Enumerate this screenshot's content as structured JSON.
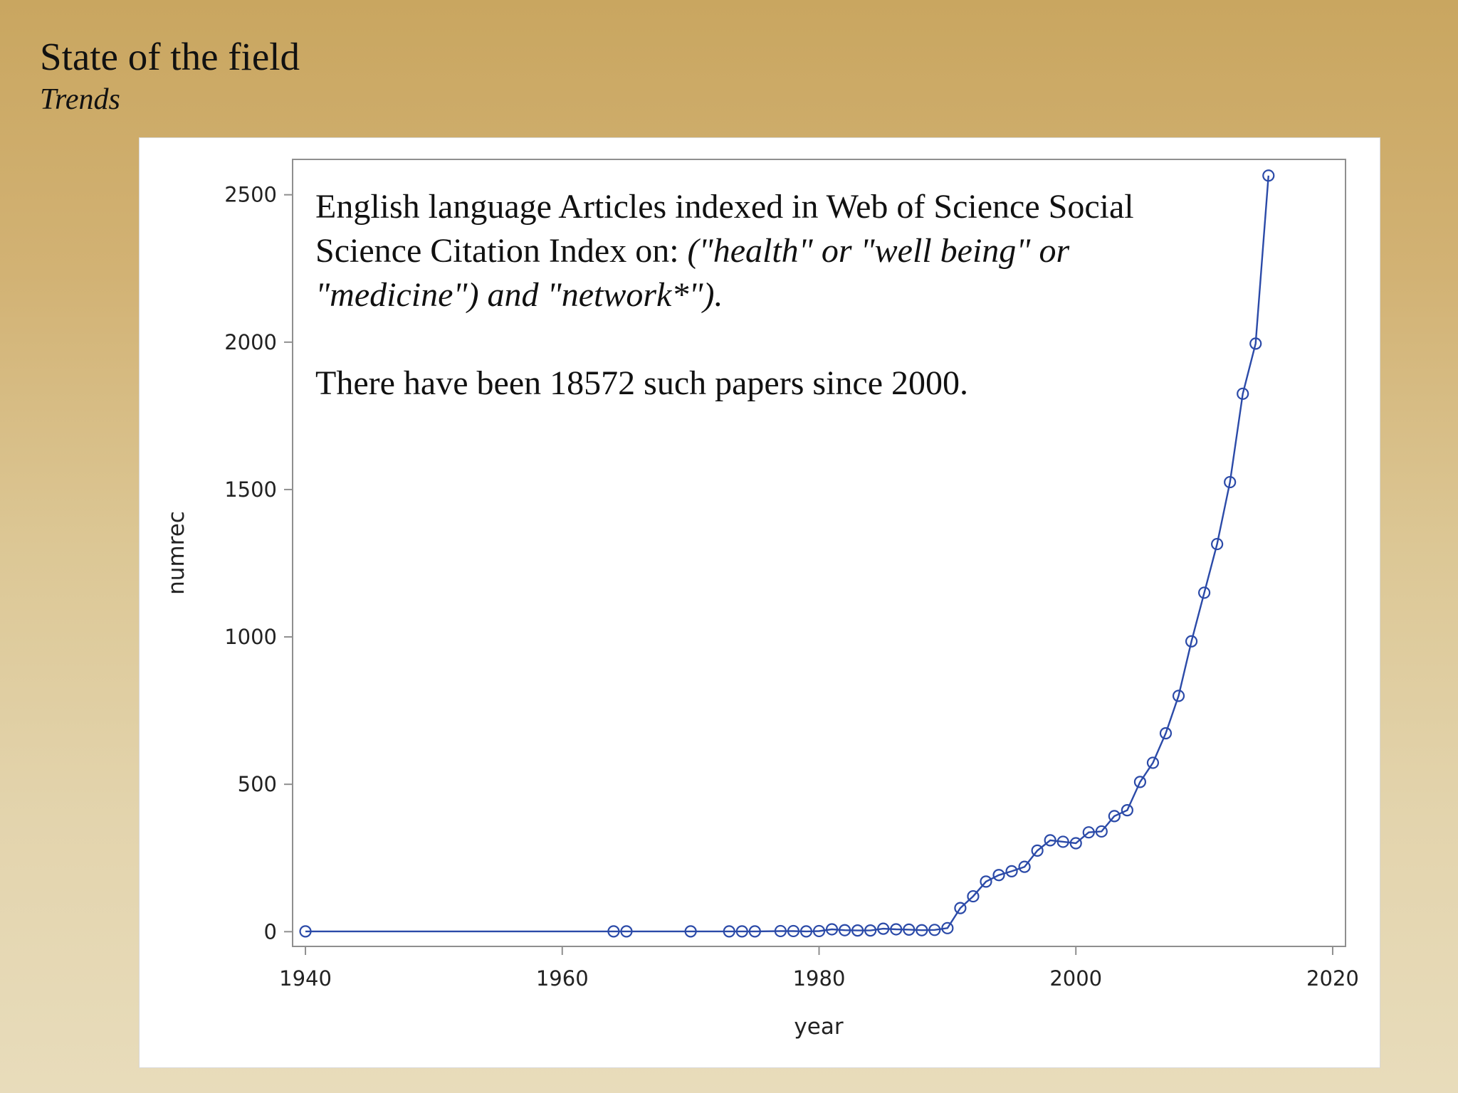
{
  "slide": {
    "title": "State of the field",
    "subtitle": "Trends"
  },
  "annotation": {
    "line1": "English language Articles indexed in Web of Science Social Science Citation Index on:",
    "query": "(\"health\" or \"well being\" or \"medicine\") and \"network*\").",
    "note": "There have been 18572 such papers since 2000."
  },
  "chart_data": {
    "type": "line",
    "xlabel": "year",
    "ylabel": "numrec",
    "xlim": [
      1939,
      2021
    ],
    "ylim": [
      -50,
      2620
    ],
    "xticks": [
      1940,
      1960,
      1980,
      2000,
      2020
    ],
    "yticks": [
      0,
      500,
      1000,
      1500,
      2000,
      2500
    ],
    "grid": false,
    "marker": "open-circle",
    "line_color": "#2b4aa8",
    "series": [
      {
        "x": [
          1940,
          1964,
          1965,
          1970,
          1973,
          1974,
          1975,
          1977,
          1978,
          1979,
          1980,
          1981,
          1982,
          1983,
          1984,
          1985,
          1986,
          1987,
          1988,
          1989,
          1990,
          1991,
          1992,
          1993,
          1994,
          1995,
          1996,
          1997,
          1998,
          1999,
          2000,
          2001,
          2002,
          2003,
          2004,
          2005,
          2006,
          2007,
          2008,
          2009,
          2010,
          2011,
          2012,
          2013,
          2014,
          2015
        ],
        "y": [
          1,
          1,
          1,
          1,
          1,
          1,
          1,
          2,
          2,
          1,
          2,
          8,
          5,
          4,
          4,
          10,
          8,
          7,
          5,
          6,
          12,
          80,
          120,
          170,
          192,
          205,
          220,
          275,
          310,
          305,
          300,
          337,
          340,
          392,
          412,
          508,
          573,
          673,
          800,
          985,
          1150,
          1315,
          1525,
          1825,
          1995,
          2565
        ]
      }
    ]
  }
}
